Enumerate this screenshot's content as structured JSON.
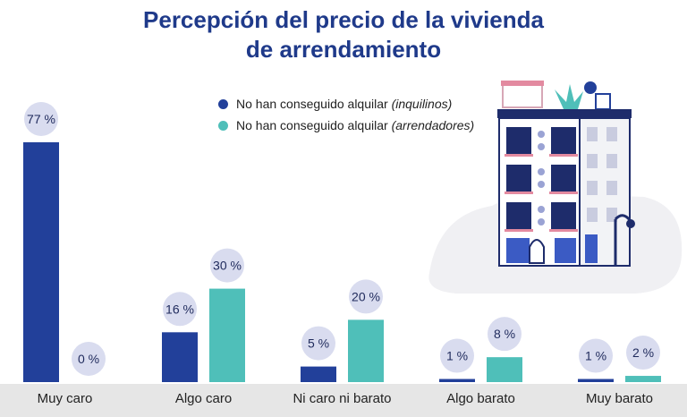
{
  "title_line1": "Percepción del precio de la vivienda",
  "title_line2": "de arrendamiento",
  "legend": [
    {
      "text": "No han conseguido alquilar ",
      "italic": "(inquilinos)",
      "color": "#22409a"
    },
    {
      "text": "No han conseguido alquilar ",
      "italic": "(arrendadores)",
      "color": "#4fbfb9"
    }
  ],
  "colors": {
    "inquilinos": "#22409a",
    "arrendadores": "#4fbfb9",
    "bubble": "#d9dcef",
    "axis_band": "#e6e6e6"
  },
  "chart_data": {
    "type": "bar",
    "categories": [
      "Muy caro",
      "Algo caro",
      "Ni caro ni barato",
      "Algo barato",
      "Muy barato"
    ],
    "series": [
      {
        "name": "No han conseguido alquilar (inquilinos)",
        "values": [
          77,
          16,
          5,
          1,
          1
        ],
        "labels": [
          "77 %",
          "16 %",
          "5 %",
          "1 %",
          "1 %"
        ]
      },
      {
        "name": "No han conseguido alquilar (arrendadores)",
        "values": [
          0,
          30,
          20,
          8,
          2
        ],
        "labels": [
          "0 %",
          "30 %",
          "20 %",
          "8 %",
          "2 %"
        ]
      }
    ],
    "ylim": [
      0,
      77
    ],
    "grid": false,
    "legend_position": "top-center"
  }
}
